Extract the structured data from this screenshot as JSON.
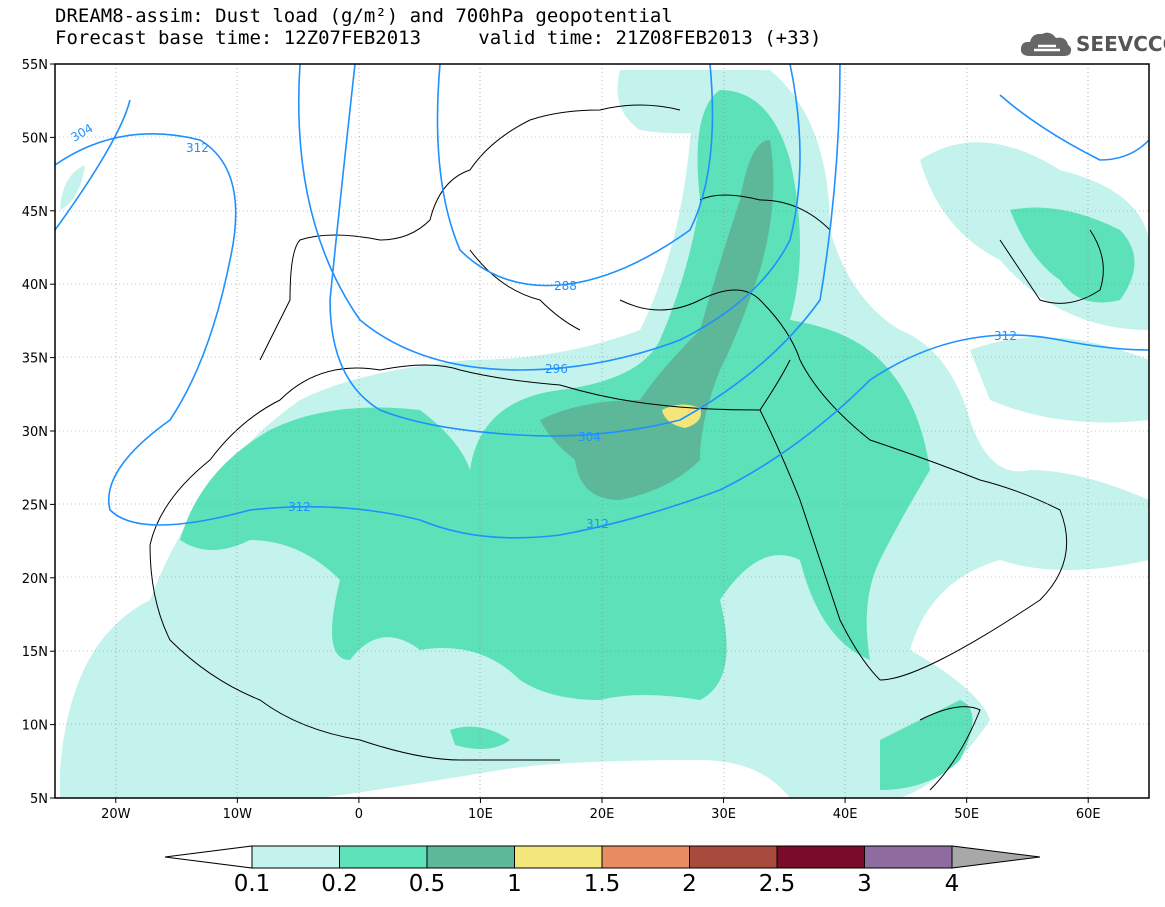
{
  "header": {
    "title_line1": "DREAM8-assim: Dust load (g/m²) and 700hPa geopotential",
    "forecast_base_time": "Forecast base time: 12Z07FEB2013",
    "valid_time": "valid time: 21Z08FEB2013 (+33)"
  },
  "logo": {
    "text": "SEEVCCC",
    "icon": "cloud-icon"
  },
  "map": {
    "lon_labels": [
      "20W",
      "10W",
      "0",
      "10E",
      "20E",
      "30E",
      "40E",
      "50E",
      "60E"
    ],
    "lat_labels": [
      "55N",
      "50N",
      "45N",
      "40N",
      "35N",
      "30N",
      "25N",
      "20N",
      "15N",
      "10N",
      "5N"
    ],
    "lon_values": [
      -20,
      -10,
      0,
      10,
      20,
      30,
      40,
      50,
      60
    ],
    "lat_values": [
      55,
      50,
      45,
      40,
      35,
      30,
      25,
      20,
      15,
      10,
      5
    ],
    "lon_range": [
      -25,
      65
    ],
    "lat_range": [
      5,
      55
    ],
    "contour_color": "#1e90ff",
    "contour_labels": [
      "304",
      "312",
      "288",
      "296",
      "304",
      "312",
      "312",
      "312"
    ],
    "contour_values": [
      304,
      312,
      288,
      296,
      304,
      312,
      312,
      312
    ]
  },
  "colorbar": {
    "labels": [
      "0.1",
      "0.2",
      "0.5",
      "1",
      "1.5",
      "2",
      "2.5",
      "3",
      "4"
    ],
    "colors": [
      "#c3f3ec",
      "#5ce1b9",
      "#5db899",
      "#f3e67b",
      "#e88c64",
      "#a84b3c",
      "#7a0b2a",
      "#8e6ca0",
      "#a8a8a8"
    ],
    "low_end_color": "#ffffff"
  }
}
